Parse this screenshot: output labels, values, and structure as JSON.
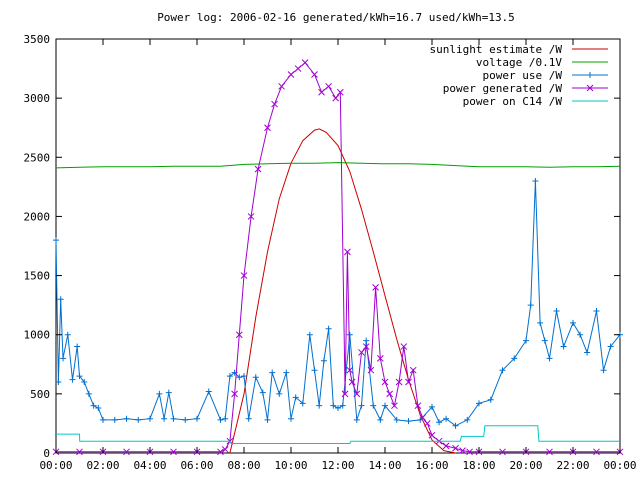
{
  "chart_data": {
    "type": "line",
    "title": "Power log: 2006-02-16 generated/kWh=16.7 used/kWh=13.5",
    "xlabel": "",
    "ylabel": "",
    "xlim": [
      0,
      24
    ],
    "ylim": [
      0,
      3500
    ],
    "x_ticks": [
      "00:00",
      "02:00",
      "04:00",
      "06:00",
      "08:00",
      "10:00",
      "12:00",
      "14:00",
      "16:00",
      "18:00",
      "20:00",
      "22:00",
      "00:00"
    ],
    "y_ticks": [
      0,
      500,
      1000,
      1500,
      2000,
      2500,
      3000,
      3500
    ],
    "grid": false,
    "legend_position": "top-right",
    "series": [
      {
        "name": "sunlight estimate /W",
        "color": "#cc0000",
        "marker": "none",
        "x": [
          7.4,
          8.0,
          8.5,
          9.0,
          9.5,
          10.0,
          10.5,
          11.0,
          11.2,
          11.5,
          12.0,
          12.5,
          13.0,
          13.5,
          14.0,
          14.5,
          15.0,
          15.5,
          16.0,
          16.5,
          17.0
        ],
        "values": [
          0,
          500,
          1150,
          1700,
          2150,
          2450,
          2640,
          2730,
          2740,
          2710,
          2600,
          2380,
          2060,
          1700,
          1330,
          960,
          620,
          320,
          110,
          20,
          0
        ]
      },
      {
        "name": "voltage /0.1V",
        "color": "#00a000",
        "marker": "none",
        "x": [
          0,
          1,
          2,
          3,
          4,
          5,
          6,
          7,
          8,
          9,
          10,
          11,
          12,
          13,
          14,
          15,
          16,
          17,
          18,
          19,
          20,
          21,
          22,
          23,
          24
        ],
        "values": [
          2410,
          2415,
          2420,
          2420,
          2420,
          2425,
          2425,
          2425,
          2440,
          2445,
          2450,
          2450,
          2455,
          2450,
          2445,
          2445,
          2440,
          2430,
          2420,
          2420,
          2420,
          2415,
          2420,
          2420,
          2425
        ]
      },
      {
        "name": "power use /W",
        "color": "#0070d0",
        "marker": "plus",
        "x": [
          0.0,
          0.1,
          0.2,
          0.3,
          0.5,
          0.7,
          0.9,
          1.0,
          1.2,
          1.4,
          1.6,
          1.8,
          2.0,
          2.5,
          3.0,
          3.5,
          4.0,
          4.4,
          4.6,
          4.8,
          5.0,
          5.5,
          6.0,
          6.5,
          7.0,
          7.2,
          7.4,
          7.6,
          7.8,
          8.0,
          8.2,
          8.5,
          8.8,
          9.0,
          9.2,
          9.5,
          9.8,
          10.0,
          10.2,
          10.5,
          10.8,
          11.0,
          11.2,
          11.4,
          11.6,
          11.8,
          12.0,
          12.2,
          12.5,
          12.8,
          13.0,
          13.2,
          13.5,
          13.8,
          14.0,
          14.5,
          15.0,
          15.5,
          16.0,
          16.3,
          16.6,
          17.0,
          17.5,
          18.0,
          18.5,
          19.0,
          19.5,
          20.0,
          20.2,
          20.4,
          20.6,
          20.8,
          21.0,
          21.3,
          21.6,
          22.0,
          22.3,
          22.6,
          23.0,
          23.3,
          23.6,
          24.0
        ],
        "values": [
          1800,
          600,
          1300,
          800,
          1000,
          620,
          900,
          650,
          600,
          500,
          400,
          380,
          280,
          280,
          290,
          280,
          290,
          500,
          290,
          510,
          290,
          280,
          290,
          520,
          280,
          290,
          650,
          680,
          640,
          650,
          290,
          640,
          510,
          280,
          680,
          500,
          680,
          290,
          470,
          420,
          1000,
          700,
          400,
          780,
          1050,
          400,
          380,
          400,
          1000,
          280,
          400,
          950,
          400,
          280,
          400,
          280,
          270,
          280,
          390,
          260,
          290,
          230,
          280,
          420,
          450,
          700,
          800,
          950,
          1250,
          2300,
          1100,
          950,
          800,
          1200,
          900,
          1100,
          1000,
          850,
          1200,
          700,
          900,
          1000
        ]
      },
      {
        "name": "power generated /W",
        "color": "#a000d0",
        "marker": "cross",
        "x": [
          0.0,
          1.0,
          2.0,
          3.0,
          4.0,
          5.0,
          6.0,
          7.0,
          7.2,
          7.4,
          7.6,
          7.8,
          8.0,
          8.3,
          8.6,
          9.0,
          9.3,
          9.6,
          10.0,
          10.3,
          10.6,
          11.0,
          11.3,
          11.6,
          11.9,
          12.1,
          12.3,
          12.4,
          12.5,
          12.6,
          12.8,
          13.0,
          13.2,
          13.4,
          13.6,
          13.8,
          14.0,
          14.2,
          14.4,
          14.6,
          14.8,
          15.0,
          15.2,
          15.4,
          15.6,
          15.8,
          16.0,
          16.3,
          16.6,
          17.0,
          17.3,
          17.6,
          18.0,
          19.0,
          20.0,
          21.0,
          22.0,
          23.0,
          24.0
        ],
        "values": [
          10,
          10,
          10,
          10,
          10,
          10,
          10,
          10,
          30,
          100,
          500,
          1000,
          1500,
          2000,
          2400,
          2750,
          2950,
          3100,
          3200,
          3250,
          3300,
          3200,
          3050,
          3100,
          3000,
          3050,
          500,
          1700,
          700,
          600,
          500,
          850,
          900,
          700,
          1400,
          800,
          600,
          500,
          400,
          600,
          900,
          600,
          700,
          400,
          300,
          250,
          150,
          100,
          60,
          40,
          20,
          10,
          10,
          10,
          10,
          10,
          10,
          10,
          10
        ]
      },
      {
        "name": "power on C14 /W",
        "color": "#00c8c8",
        "marker": "none",
        "x": [
          0.0,
          1.0,
          1.01,
          7.4,
          7.45,
          12.5,
          12.55,
          17.2,
          17.25,
          18.2,
          18.25,
          20.5,
          20.55,
          24.0
        ],
        "values": [
          160,
          160,
          100,
          100,
          80,
          80,
          100,
          100,
          140,
          140,
          230,
          230,
          100,
          100
        ]
      }
    ]
  }
}
